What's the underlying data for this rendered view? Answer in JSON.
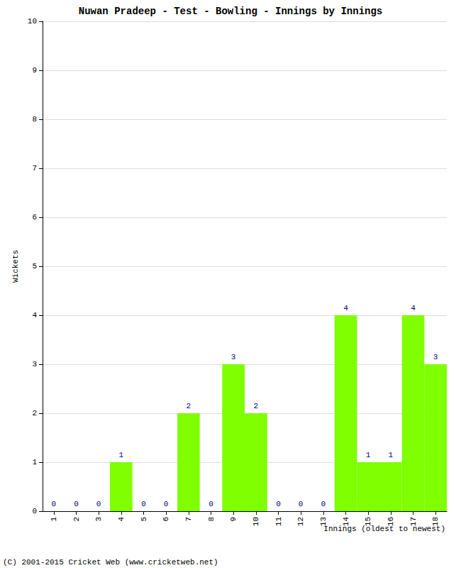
{
  "chart_data": {
    "type": "bar",
    "title": "Nuwan Pradeep - Test - Bowling - Innings by Innings",
    "x_label": "Innings (oldest to newest)",
    "y_label": "Wickets",
    "annotations": [
      "(C) 2001-2015 Cricket Web (www.cricketweb.net)"
    ],
    "categories": [
      "1",
      "2",
      "3",
      "4",
      "5",
      "6",
      "7",
      "8",
      "9",
      "10",
      "11",
      "12",
      "13",
      "14",
      "15",
      "16",
      "17",
      "18"
    ],
    "values": [
      0,
      0,
      0,
      1,
      0,
      0,
      2,
      0,
      3,
      2,
      0,
      0,
      0,
      4,
      1,
      1,
      4,
      3
    ],
    "color": "#7fff00",
    "ylim": [
      0,
      10
    ],
    "yticks": [
      0,
      1,
      2,
      3,
      4,
      5,
      6,
      7,
      8,
      9,
      10
    ],
    "grid": true,
    "data_labels": true
  }
}
